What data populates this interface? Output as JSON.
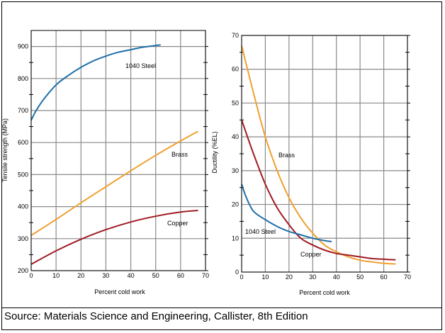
{
  "caption": "Source: Materials Science and Engineering, Callister, 8th Edition",
  "colors": {
    "steel": "#1f6fa8",
    "brass": "#f0a030",
    "copper": "#a01c24"
  },
  "chart_data": [
    {
      "type": "line",
      "xlabel": "Percent cold work",
      "ylabel": "Tensile strength (MPa)",
      "xlim": [
        0,
        70
      ],
      "ylim": [
        200,
        950
      ],
      "xticks": [
        "0",
        "10",
        "20",
        "30",
        "40",
        "50",
        "60",
        "70"
      ],
      "yticks": [
        "200",
        "300",
        "400",
        "500",
        "600",
        "700",
        "800",
        "900"
      ],
      "grid": true,
      "series": [
        {
          "name": "1040 Steel",
          "color_key": "steel",
          "x": [
            0,
            2,
            5,
            10,
            15,
            20,
            25,
            30,
            35,
            40,
            45,
            50,
            52
          ],
          "y": [
            670,
            700,
            735,
            780,
            810,
            835,
            855,
            870,
            882,
            890,
            898,
            903,
            905
          ]
        },
        {
          "name": "Brass",
          "color_key": "brass",
          "x": [
            0,
            10,
            20,
            30,
            40,
            50,
            60,
            67
          ],
          "y": [
            310,
            360,
            412,
            462,
            512,
            560,
            605,
            635
          ]
        },
        {
          "name": "Copper",
          "color_key": "copper",
          "x": [
            0,
            10,
            20,
            30,
            40,
            50,
            60,
            67
          ],
          "y": [
            220,
            262,
            298,
            328,
            352,
            370,
            383,
            388
          ]
        }
      ]
    },
    {
      "type": "line",
      "xlabel": "Percent cold work",
      "ylabel": "Ductility (%EL)",
      "xlim": [
        0,
        70
      ],
      "ylim": [
        0,
        70
      ],
      "xticks": [
        "0",
        "10",
        "20",
        "30",
        "40",
        "50",
        "60",
        "70"
      ],
      "yticks": [
        "0",
        "10",
        "20",
        "30",
        "40",
        "50",
        "60",
        "70"
      ],
      "grid": true,
      "series": [
        {
          "name": "Brass",
          "color_key": "brass",
          "x": [
            0,
            5,
            10,
            15,
            20,
            25,
            30,
            35,
            40,
            45,
            50,
            55,
            60,
            65
          ],
          "y": [
            67,
            53,
            40,
            30,
            22,
            16,
            11.5,
            8,
            6,
            4.5,
            3.5,
            3,
            2.6,
            2.4
          ]
        },
        {
          "name": "Copper",
          "color_key": "copper",
          "x": [
            0,
            5,
            10,
            15,
            20,
            25,
            30,
            35,
            40,
            45,
            50,
            55,
            60,
            65
          ],
          "y": [
            45,
            35,
            26,
            19,
            14,
            10,
            8,
            6.5,
            5.5,
            5,
            4.5,
            4,
            3.8,
            3.6
          ]
        },
        {
          "name": "1040 Steel",
          "color_key": "steel",
          "x": [
            0,
            2,
            5,
            10,
            15,
            20,
            25,
            30,
            35,
            38
          ],
          "y": [
            26,
            22,
            18,
            15.5,
            13.5,
            12,
            11,
            10,
            9.3,
            9
          ]
        }
      ]
    }
  ]
}
